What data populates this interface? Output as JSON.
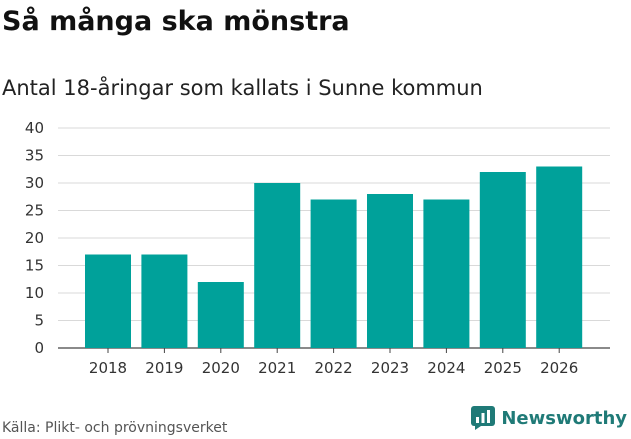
{
  "title": "Så många ska mönstra",
  "subtitle": "Antal 18-åringar som kallats i Sunne kommun",
  "source": "Källa: Plikt- och prövningsverket",
  "logo_text": "Newsworthy",
  "colors": {
    "bar": "#00a19a",
    "grid": "#d9d9d9",
    "axis": "#444444",
    "logo": "#1f7a77"
  },
  "chart_data": {
    "type": "bar",
    "title": "Så många ska mönstra",
    "subtitle": "Antal 18-åringar som kallats i Sunne kommun",
    "categories": [
      "2018",
      "2019",
      "2020",
      "2021",
      "2022",
      "2023",
      "2024",
      "2025",
      "2026"
    ],
    "values": [
      17,
      17,
      12,
      30,
      27,
      28,
      27,
      32,
      33
    ],
    "ylim": [
      0,
      40
    ],
    "yticks": [
      0,
      5,
      10,
      15,
      20,
      25,
      30,
      35,
      40
    ],
    "grid": true,
    "legend": "none"
  }
}
